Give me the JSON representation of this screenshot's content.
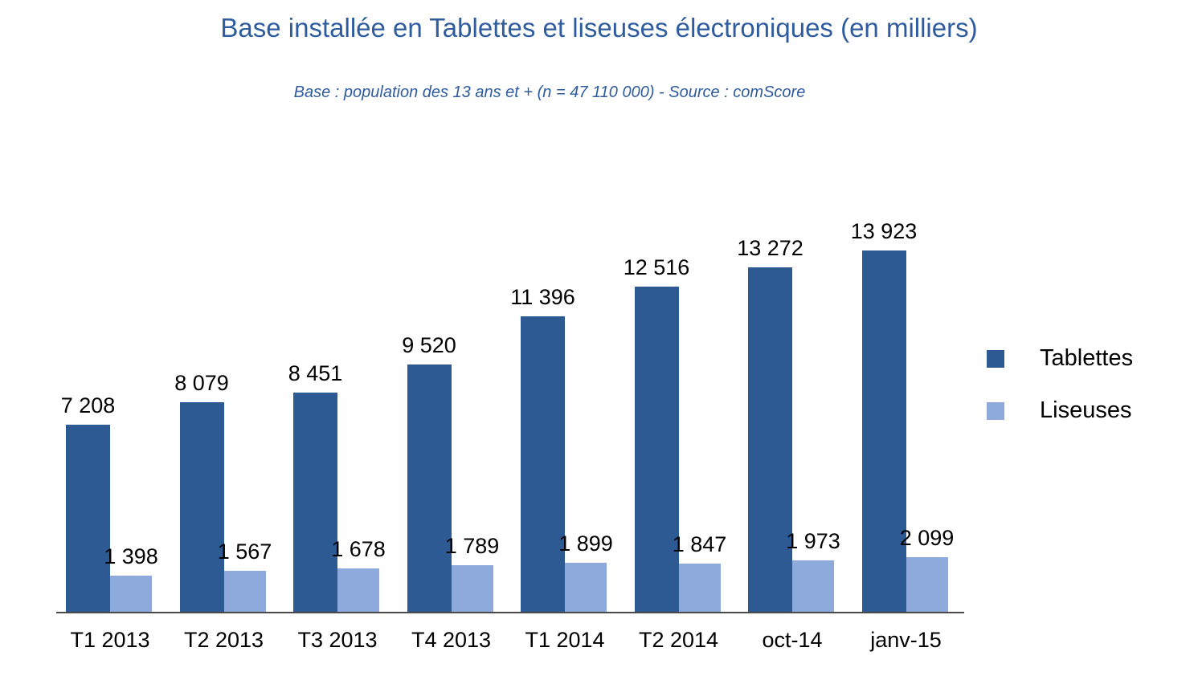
{
  "chart_data": {
    "type": "bar",
    "title": "Base installée en Tablettes et liseuses électroniques (en milliers)",
    "subtitle": "Base : population des 13 ans et + (n = 47 110 000)  - Source : comScore",
    "categories": [
      "T1 2013",
      "T2 2013",
      "T3 2013",
      "T4 2013",
      "T1 2014",
      "T2 2014",
      "oct-14",
      "janv-15"
    ],
    "series": [
      {
        "name": "Tablettes",
        "color": "#2E5A94",
        "values": [
          7208,
          8079,
          8451,
          9520,
          11396,
          12516,
          13272,
          13923
        ]
      },
      {
        "name": "Liseuses",
        "color": "#8EA9DB",
        "values": [
          1398,
          1567,
          1678,
          1789,
          1899,
          1847,
          1973,
          2099
        ]
      }
    ],
    "xlabel": "",
    "ylabel": "",
    "ylim": [
      0,
      14000
    ],
    "grid": false,
    "value_labels": true,
    "legend_position": "right",
    "title_color": "#2E5C9E",
    "axis_line_color": "#4a4a4a",
    "label_color": "#000000"
  }
}
